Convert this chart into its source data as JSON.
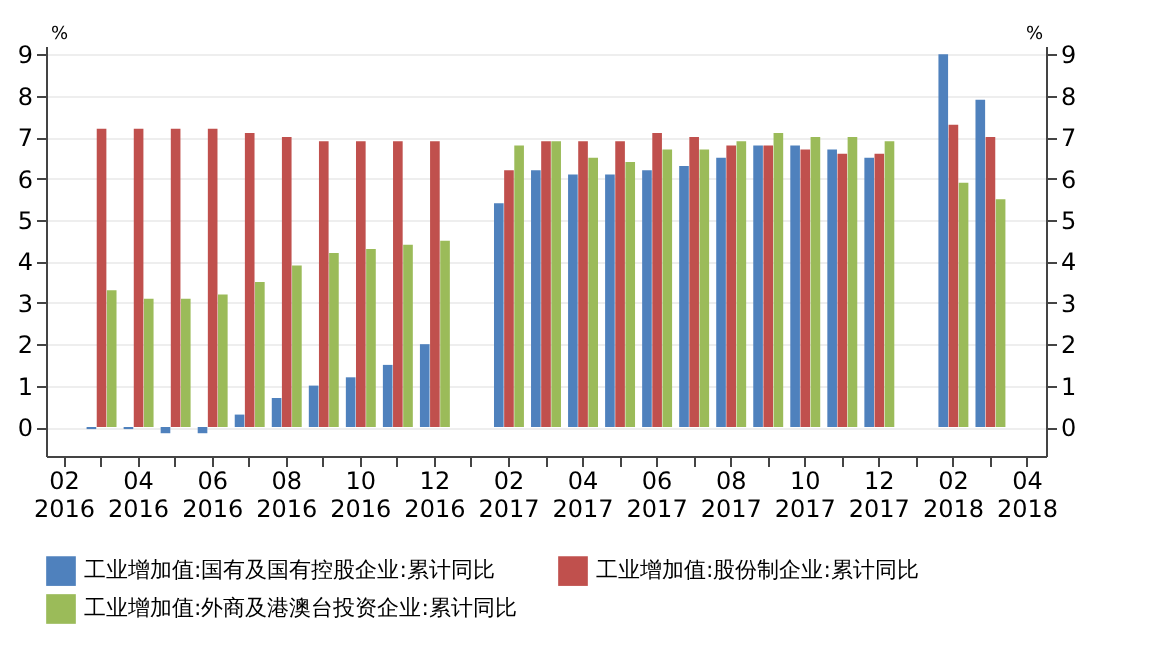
{
  "chart_data": {
    "type": "bar",
    "ylabel": "%",
    "y2label": "%",
    "categories": [
      "02\n2016",
      null,
      "04\n2016",
      null,
      "06\n2016",
      null,
      "08\n2016",
      null,
      "10\n2016",
      null,
      "12\n2016",
      null,
      "02\n2017",
      null,
      "04\n2017",
      null,
      "06\n2017",
      null,
      "08\n2017",
      null,
      "10\n2017",
      null,
      "12\n2017",
      null,
      "02\n2018",
      null,
      "04\n2018"
    ],
    "series": [
      {
        "name": "工业增加值:国有及国有控股企业:累计同比",
        "color": "#4f81bd",
        "values": [
          null,
          -0.05,
          -0.05,
          -0.15,
          -0.15,
          0.3,
          0.7,
          1.0,
          1.2,
          1.5,
          2.0,
          null,
          5.4,
          6.2,
          6.1,
          6.1,
          6.2,
          6.3,
          6.5,
          6.8,
          6.8,
          6.7,
          6.5,
          null,
          9.0,
          7.9,
          null
        ]
      },
      {
        "name": "工业增加值:股份制企业:累计同比",
        "color": "#c0504d",
        "values": [
          null,
          7.2,
          7.2,
          7.2,
          7.2,
          7.1,
          7.0,
          6.9,
          6.9,
          6.9,
          6.9,
          null,
          6.2,
          6.9,
          6.9,
          6.9,
          7.1,
          7.0,
          6.8,
          6.8,
          6.7,
          6.6,
          6.6,
          null,
          7.3,
          7.0,
          null
        ]
      },
      {
        "name": "工业增加值:外商及港澳台投资企业:累计同比",
        "color": "#9bbb59",
        "values": [
          null,
          3.3,
          3.1,
          3.1,
          3.2,
          3.5,
          3.9,
          4.2,
          4.3,
          4.4,
          4.5,
          null,
          6.8,
          6.9,
          6.5,
          6.4,
          6.7,
          6.7,
          6.9,
          7.1,
          7.0,
          7.0,
          6.9,
          null,
          5.9,
          5.5,
          null
        ]
      }
    ],
    "ylim": [
      -0.7,
      9.2
    ],
    "yticks": [
      0,
      1,
      2,
      3,
      4,
      5,
      6,
      7,
      8,
      9
    ],
    "y2lim": [
      -0.7,
      9.2
    ],
    "y2ticks": [
      0,
      1,
      2,
      3,
      4,
      5,
      6,
      7,
      8,
      9
    ],
    "grid": "y",
    "legend": "bottom"
  }
}
